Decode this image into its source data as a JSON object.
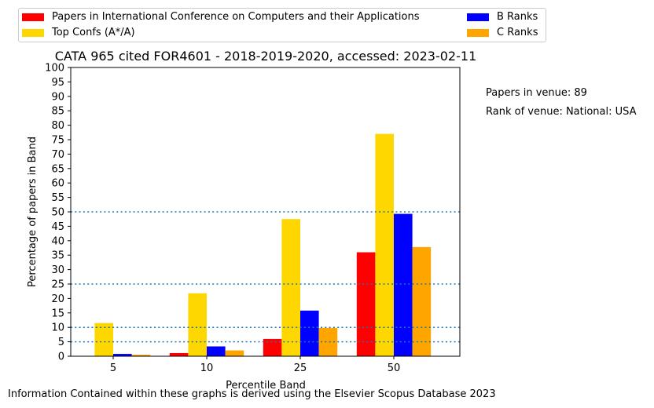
{
  "chart_data": {
    "type": "bar",
    "title": "CATA 965 cited FOR4601 - 2018-2019-2020, accessed: 2023-02-11",
    "xlabel": "Percentile Band",
    "ylabel": "Percentage of papers in Band",
    "categories": [
      "5",
      "10",
      "25",
      "50"
    ],
    "ylim": [
      0,
      100
    ],
    "yticks": [
      0,
      5,
      10,
      15,
      20,
      25,
      30,
      35,
      40,
      45,
      50,
      55,
      60,
      65,
      70,
      75,
      80,
      85,
      90,
      95,
      100
    ],
    "reference_lines": [
      5,
      10,
      25,
      50
    ],
    "grid": false,
    "legend_placement": "top",
    "series": [
      {
        "name": "Papers in International Conference on Computers and their Applications",
        "color": "#ff0000",
        "values": [
          0,
          1.1,
          6.0,
          36.0
        ]
      },
      {
        "name": "Top Confs (A*/A)",
        "color": "#ffd700",
        "values": [
          11.5,
          21.8,
          47.5,
          77.0
        ]
      },
      {
        "name": "B Ranks",
        "color": "#0000ff",
        "values": [
          0.8,
          3.4,
          15.8,
          49.3
        ]
      },
      {
        "name": "C Ranks",
        "color": "#ffa500",
        "values": [
          0.5,
          2.0,
          9.8,
          37.8
        ]
      }
    ]
  },
  "side_notes": {
    "papers_in_venue": "Papers in venue: 89",
    "rank_of_venue": "Rank of venue: National: USA"
  },
  "footer": "Information Contained within these graphs is derived using the Elsevier Scopus Database 2023"
}
